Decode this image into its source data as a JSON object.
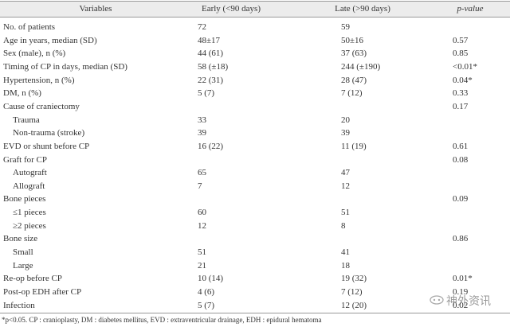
{
  "table": {
    "header": [
      "Variables",
      "Early (<90 days)",
      "Late (>90 days)",
      "p-value"
    ],
    "rows": [
      {
        "label": "No. of patients",
        "early": "72",
        "late": "59",
        "p": null
      },
      {
        "label": "Age in years, median (SD)",
        "early": "48±17",
        "late": "50±16",
        "p": "0.57"
      },
      {
        "label": "Sex (male), n (%)",
        "early": "44 (61)",
        "late": "37 (63)",
        "p": "0.85"
      },
      {
        "label": "Timing of CP in days, median (SD)",
        "early": "58 (±18)",
        "late": "244 (±190)",
        "p": "<0.01*"
      },
      {
        "label": "Hypertension, n (%)",
        "early": "22 (31)",
        "late": "28 (47)",
        "p": "0.04*"
      },
      {
        "label": "DM, n (%)",
        "early": "5 (7)",
        "late": "7 (12)",
        "p": "0.33"
      },
      {
        "label": "Cause of craniectomy",
        "early": null,
        "late": null,
        "p": "0.17"
      },
      {
        "label": "Trauma",
        "early": "33",
        "late": "20",
        "p": null,
        "indent": true
      },
      {
        "label": "Non-trauma (stroke)",
        "early": "39",
        "late": "39",
        "p": null,
        "indent": true
      },
      {
        "label": "EVD or shunt before CP",
        "early": "16 (22)",
        "late": "11 (19)",
        "p": "0.61"
      },
      {
        "label": "Graft for CP",
        "early": null,
        "late": null,
        "p": "0.08"
      },
      {
        "label": "Autograft",
        "early": "65",
        "late": "47",
        "p": null,
        "indent": true
      },
      {
        "label": "Allograft",
        "early": "7",
        "late": "12",
        "p": null,
        "indent": true
      },
      {
        "label": "Bone pieces",
        "early": null,
        "late": null,
        "p": "0.09"
      },
      {
        "label": "≤1 pieces",
        "early": "60",
        "late": "51",
        "p": null,
        "indent": true
      },
      {
        "label": "≥2 pieces",
        "early": "12",
        "late": "8",
        "p": null,
        "indent": true
      },
      {
        "label": "Bone size",
        "early": null,
        "late": null,
        "p": "0.86"
      },
      {
        "label": "Small",
        "early": "51",
        "late": "41",
        "p": null,
        "indent": true
      },
      {
        "label": "Large",
        "early": "21",
        "late": "18",
        "p": null,
        "indent": true
      },
      {
        "label": "Re-op before CP",
        "early": "10 (14)",
        "late": "19 (32)",
        "p": "0.01*"
      },
      {
        "label": "Post-op EDH after CP",
        "early": "4 (6)",
        "late": "7 (12)",
        "p": "0.19"
      },
      {
        "label": "Infection",
        "early": "5 (7)",
        "late": "12 (20)",
        "p": "0.02"
      }
    ],
    "footnote": "*p<0.05. CP : cranioplasty, DM : diabetes mellitus, EVD : extraventricular drainage, EDH : epidural hematoma"
  },
  "watermark": "神外资讯"
}
